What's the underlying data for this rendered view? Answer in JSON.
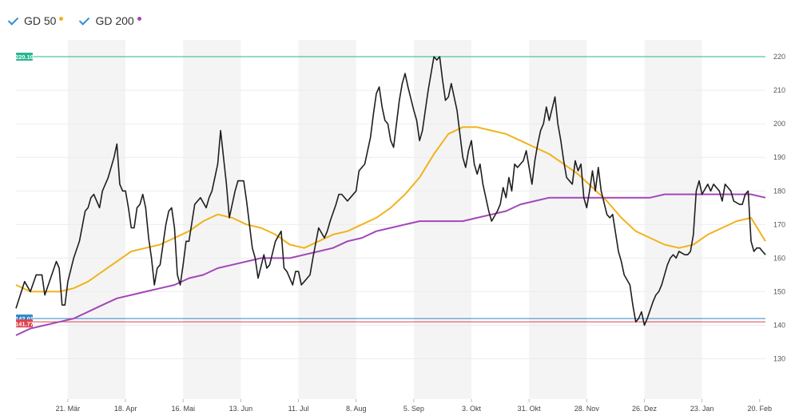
{
  "legend": {
    "items": [
      {
        "label": "GD 50",
        "color": "#f1b31c"
      },
      {
        "label": "GD 200",
        "color": "#a346b8"
      }
    ]
  },
  "chart_data": {
    "type": "line",
    "ylim": [
      118,
      225
    ],
    "y_ticks": [
      130,
      140,
      150,
      160,
      170,
      180,
      190,
      200,
      210,
      220
    ],
    "x_ticks": [
      "21. Mär",
      "18. Apr",
      "16. Mai",
      "13. Jun",
      "11. Jul",
      "8. Aug",
      "5. Sep",
      "3. Okt",
      "31. Okt",
      "28. Nov",
      "26. Dez",
      "23. Jan",
      "20. Feb"
    ],
    "x_tick_index": [
      36,
      76,
      116,
      156,
      196,
      236,
      276,
      316,
      356,
      396,
      436,
      476,
      516
    ],
    "n_points": 521,
    "price_color": "#1f1f1f",
    "price_points": [
      [
        0,
        145
      ],
      [
        6,
        153
      ],
      [
        10,
        150
      ],
      [
        14,
        155
      ],
      [
        18,
        155
      ],
      [
        20,
        149
      ],
      [
        24,
        154
      ],
      [
        28,
        159
      ],
      [
        30,
        157
      ],
      [
        32,
        146
      ],
      [
        34,
        146
      ],
      [
        36,
        153
      ],
      [
        40,
        160
      ],
      [
        44,
        165
      ],
      [
        48,
        174
      ],
      [
        50,
        175
      ],
      [
        52,
        178
      ],
      [
        54,
        179
      ],
      [
        58,
        175
      ],
      [
        60,
        180
      ],
      [
        64,
        184
      ],
      [
        68,
        190
      ],
      [
        70,
        194
      ],
      [
        72,
        182
      ],
      [
        74,
        180
      ],
      [
        76,
        180
      ],
      [
        78,
        175
      ],
      [
        80,
        169
      ],
      [
        82,
        169
      ],
      [
        84,
        175
      ],
      [
        86,
        176
      ],
      [
        88,
        179
      ],
      [
        90,
        175
      ],
      [
        92,
        166
      ],
      [
        94,
        160
      ],
      [
        96,
        152
      ],
      [
        98,
        157
      ],
      [
        100,
        158
      ],
      [
        104,
        170
      ],
      [
        106,
        174
      ],
      [
        108,
        175
      ],
      [
        110,
        169
      ],
      [
        112,
        155
      ],
      [
        114,
        152
      ],
      [
        116,
        158
      ],
      [
        118,
        165
      ],
      [
        120,
        165
      ],
      [
        124,
        176
      ],
      [
        128,
        178
      ],
      [
        132,
        175
      ],
      [
        134,
        178
      ],
      [
        136,
        180
      ],
      [
        140,
        188
      ],
      [
        142,
        198
      ],
      [
        146,
        182
      ],
      [
        148,
        172
      ],
      [
        152,
        180
      ],
      [
        154,
        183
      ],
      [
        158,
        183
      ],
      [
        160,
        177
      ],
      [
        164,
        163
      ],
      [
        166,
        160
      ],
      [
        168,
        154
      ],
      [
        172,
        161
      ],
      [
        174,
        157
      ],
      [
        176,
        158
      ],
      [
        180,
        165
      ],
      [
        184,
        168
      ],
      [
        186,
        157
      ],
      [
        188,
        156
      ],
      [
        192,
        152
      ],
      [
        194,
        156
      ],
      [
        196,
        156
      ],
      [
        198,
        152
      ],
      [
        200,
        153
      ],
      [
        204,
        155
      ],
      [
        206,
        160
      ],
      [
        210,
        169
      ],
      [
        214,
        166
      ],
      [
        216,
        168
      ],
      [
        218,
        171
      ],
      [
        222,
        176
      ],
      [
        224,
        179
      ],
      [
        226,
        179
      ],
      [
        230,
        177
      ],
      [
        232,
        178
      ],
      [
        236,
        180
      ],
      [
        238,
        186
      ],
      [
        242,
        188
      ],
      [
        246,
        196
      ],
      [
        248,
        203
      ],
      [
        250,
        209
      ],
      [
        252,
        211
      ],
      [
        254,
        205
      ],
      [
        256,
        201
      ],
      [
        258,
        200
      ],
      [
        260,
        195
      ],
      [
        262,
        193
      ],
      [
        264,
        200
      ],
      [
        266,
        207
      ],
      [
        268,
        212
      ],
      [
        270,
        215
      ],
      [
        272,
        211
      ],
      [
        276,
        204
      ],
      [
        278,
        201
      ],
      [
        280,
        195
      ],
      [
        282,
        198
      ],
      [
        284,
        204
      ],
      [
        286,
        210
      ],
      [
        290,
        220
      ],
      [
        292,
        219
      ],
      [
        294,
        220
      ],
      [
        296,
        213
      ],
      [
        298,
        207
      ],
      [
        300,
        208
      ],
      [
        302,
        212
      ],
      [
        304,
        208
      ],
      [
        306,
        204
      ],
      [
        310,
        190
      ],
      [
        312,
        187
      ],
      [
        314,
        192
      ],
      [
        316,
        195
      ],
      [
        318,
        188
      ],
      [
        320,
        185
      ],
      [
        322,
        188
      ],
      [
        324,
        182
      ],
      [
        328,
        174
      ],
      [
        330,
        171
      ],
      [
        334,
        174
      ],
      [
        336,
        176
      ],
      [
        338,
        181
      ],
      [
        340,
        178
      ],
      [
        342,
        184
      ],
      [
        344,
        180
      ],
      [
        346,
        188
      ],
      [
        348,
        187
      ],
      [
        352,
        189
      ],
      [
        354,
        192
      ],
      [
        356,
        187
      ],
      [
        358,
        182
      ],
      [
        360,
        189
      ],
      [
        362,
        194
      ],
      [
        364,
        198
      ],
      [
        366,
        200
      ],
      [
        368,
        205
      ],
      [
        370,
        201
      ],
      [
        374,
        208
      ],
      [
        376,
        200
      ],
      [
        378,
        195
      ],
      [
        380,
        189
      ],
      [
        382,
        184
      ],
      [
        386,
        182
      ],
      [
        388,
        189
      ],
      [
        390,
        186
      ],
      [
        392,
        188
      ],
      [
        394,
        178
      ],
      [
        396,
        175
      ],
      [
        398,
        180
      ],
      [
        400,
        186
      ],
      [
        402,
        180
      ],
      [
        404,
        187
      ],
      [
        406,
        180
      ],
      [
        410,
        173
      ],
      [
        412,
        172
      ],
      [
        414,
        173
      ],
      [
        418,
        162
      ],
      [
        420,
        159
      ],
      [
        422,
        155
      ],
      [
        426,
        152
      ],
      [
        428,
        146
      ],
      [
        430,
        141
      ],
      [
        432,
        142
      ],
      [
        434,
        144
      ],
      [
        436,
        140
      ],
      [
        438,
        142
      ],
      [
        442,
        147
      ],
      [
        444,
        149
      ],
      [
        446,
        150
      ],
      [
        448,
        152
      ],
      [
        452,
        158
      ],
      [
        454,
        160
      ],
      [
        456,
        161
      ],
      [
        458,
        160
      ],
      [
        460,
        162
      ],
      [
        464,
        161
      ],
      [
        466,
        161
      ],
      [
        468,
        162
      ],
      [
        470,
        167
      ],
      [
        472,
        180
      ],
      [
        474,
        183
      ],
      [
        476,
        179
      ],
      [
        480,
        182
      ],
      [
        482,
        180
      ],
      [
        484,
        182
      ],
      [
        488,
        180
      ],
      [
        490,
        177
      ],
      [
        492,
        182
      ],
      [
        494,
        181
      ],
      [
        496,
        180
      ],
      [
        498,
        177
      ],
      [
        502,
        176
      ],
      [
        504,
        176
      ],
      [
        506,
        179
      ],
      [
        508,
        180
      ],
      [
        510,
        165
      ],
      [
        512,
        162
      ],
      [
        514,
        163
      ],
      [
        516,
        163
      ],
      [
        518,
        162
      ],
      [
        520,
        161
      ]
    ],
    "series": [
      {
        "name": "GD 50",
        "color": "#f1b31c",
        "points": [
          [
            0,
            152
          ],
          [
            10,
            150
          ],
          [
            20,
            150
          ],
          [
            30,
            150
          ],
          [
            40,
            151
          ],
          [
            50,
            153
          ],
          [
            60,
            156
          ],
          [
            70,
            159
          ],
          [
            80,
            162
          ],
          [
            90,
            163
          ],
          [
            100,
            164
          ],
          [
            110,
            166
          ],
          [
            120,
            168
          ],
          [
            130,
            171
          ],
          [
            140,
            173
          ],
          [
            150,
            172
          ],
          [
            160,
            170
          ],
          [
            170,
            169
          ],
          [
            180,
            167
          ],
          [
            190,
            164
          ],
          [
            200,
            163
          ],
          [
            210,
            165
          ],
          [
            220,
            167
          ],
          [
            230,
            168
          ],
          [
            240,
            170
          ],
          [
            250,
            172
          ],
          [
            260,
            175
          ],
          [
            270,
            179
          ],
          [
            280,
            184
          ],
          [
            290,
            191
          ],
          [
            300,
            197
          ],
          [
            310,
            199
          ],
          [
            320,
            199
          ],
          [
            330,
            198
          ],
          [
            340,
            197
          ],
          [
            350,
            195
          ],
          [
            360,
            193
          ],
          [
            370,
            191
          ],
          [
            380,
            188
          ],
          [
            390,
            185
          ],
          [
            400,
            181
          ],
          [
            410,
            177
          ],
          [
            420,
            172
          ],
          [
            430,
            168
          ],
          [
            440,
            166
          ],
          [
            450,
            164
          ],
          [
            460,
            163
          ],
          [
            470,
            164
          ],
          [
            480,
            167
          ],
          [
            490,
            169
          ],
          [
            500,
            171
          ],
          [
            510,
            172
          ],
          [
            520,
            165
          ]
        ]
      },
      {
        "name": "GD 200",
        "color": "#a346b8",
        "points": [
          [
            0,
            137
          ],
          [
            10,
            139
          ],
          [
            20,
            140
          ],
          [
            30,
            141
          ],
          [
            40,
            142
          ],
          [
            50,
            144
          ],
          [
            60,
            146
          ],
          [
            70,
            148
          ],
          [
            80,
            149
          ],
          [
            90,
            150
          ],
          [
            100,
            151
          ],
          [
            110,
            152
          ],
          [
            120,
            154
          ],
          [
            130,
            155
          ],
          [
            140,
            157
          ],
          [
            150,
            158
          ],
          [
            160,
            159
          ],
          [
            170,
            160
          ],
          [
            180,
            160
          ],
          [
            190,
            160
          ],
          [
            200,
            161
          ],
          [
            210,
            162
          ],
          [
            220,
            163
          ],
          [
            230,
            165
          ],
          [
            240,
            166
          ],
          [
            250,
            168
          ],
          [
            260,
            169
          ],
          [
            270,
            170
          ],
          [
            280,
            171
          ],
          [
            290,
            171
          ],
          [
            300,
            171
          ],
          [
            310,
            171
          ],
          [
            320,
            172
          ],
          [
            330,
            173
          ],
          [
            340,
            174
          ],
          [
            350,
            176
          ],
          [
            360,
            177
          ],
          [
            370,
            178
          ],
          [
            380,
            178
          ],
          [
            390,
            178
          ],
          [
            400,
            178
          ],
          [
            410,
            178
          ],
          [
            420,
            178
          ],
          [
            430,
            178
          ],
          [
            440,
            178
          ],
          [
            450,
            179
          ],
          [
            460,
            179
          ],
          [
            470,
            179
          ],
          [
            480,
            179
          ],
          [
            490,
            179
          ],
          [
            500,
            179
          ],
          [
            510,
            179
          ],
          [
            520,
            178
          ]
        ]
      }
    ],
    "reference_lines": [
      {
        "value": 220,
        "label": "220.10",
        "color": "#2bb592"
      },
      {
        "value": 142,
        "label": "142.01",
        "color": "#2f87c8"
      },
      {
        "value": 141,
        "label": "141.77",
        "color": "#e0424e"
      }
    ],
    "grid": true
  }
}
